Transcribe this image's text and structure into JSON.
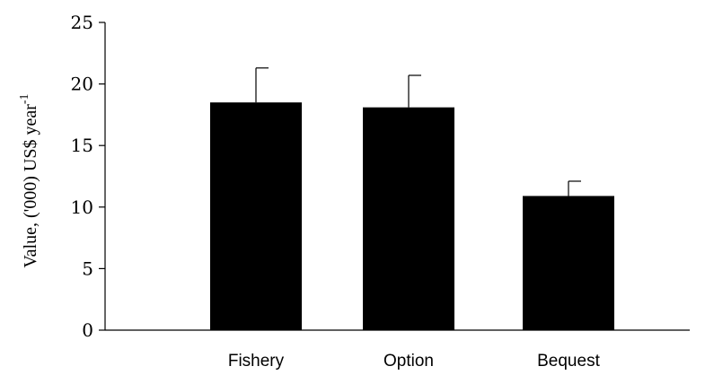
{
  "chart_data": {
    "type": "bar",
    "categories": [
      "Fishery",
      "Option",
      "Bequest"
    ],
    "values": [
      18.5,
      18.1,
      10.9
    ],
    "error_upper": [
      21.3,
      20.7,
      12.1
    ],
    "xlabel": "",
    "ylabel": {
      "text": "Value, ('000) US$ year",
      "superscript": "-1"
    },
    "ylim": [
      0,
      25
    ],
    "yticks": [
      "0",
      "5",
      "10",
      "15",
      "20",
      "25"
    ],
    "grid": false,
    "legend": "none",
    "bar_color": "#000000"
  }
}
